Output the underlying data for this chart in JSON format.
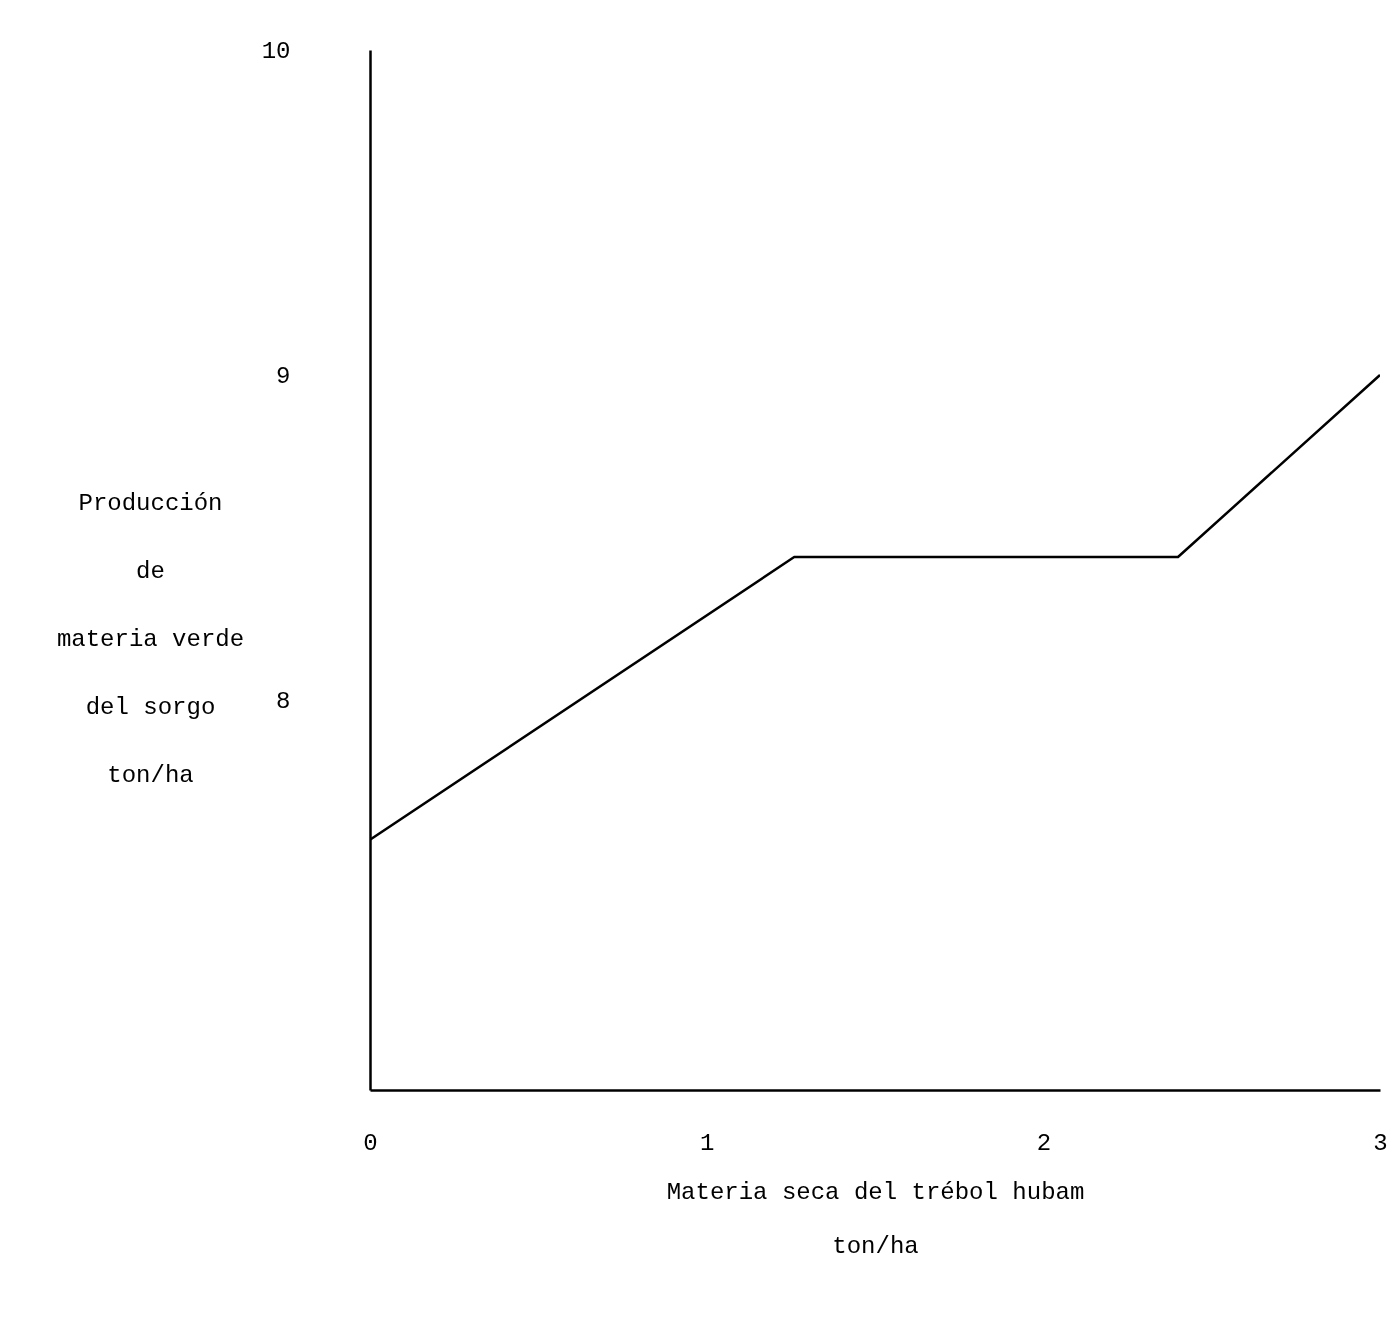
{
  "chart_data": {
    "type": "line",
    "xlabel": "Materia seca del trébol hubam\nton/ha",
    "ylabel": "Producción\nde\nmateria verde\ndel sorgo\nton/ha",
    "x": [
      0,
      1.26,
      2.4,
      3
    ],
    "series": [
      {
        "color": "#000000",
        "values": [
          7.57,
          8.44,
          8.44,
          9
        ]
      }
    ],
    "xlim": [
      0,
      3
    ],
    "xticks": [
      0,
      1,
      2,
      3
    ],
    "ylim": [
      6.8,
      10
    ],
    "yticks": [
      8,
      9,
      10
    ],
    "grid": false,
    "marker": "none",
    "line_style": "solid"
  }
}
